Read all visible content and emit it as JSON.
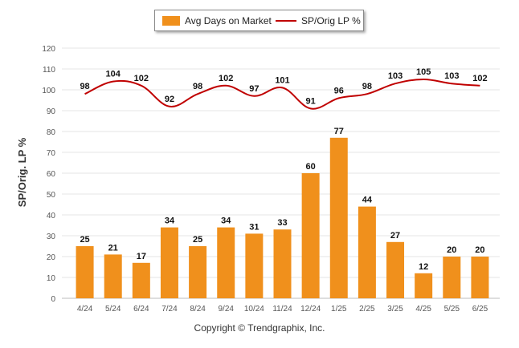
{
  "legend": {
    "bar_label": "Avg Days on Market",
    "line_label": "SP/Orig LP %"
  },
  "copyright": "Copyright © Trendgraphix, Inc.",
  "chart_data": {
    "type": "bar",
    "categories": [
      "4/24",
      "5/24",
      "6/24",
      "7/24",
      "8/24",
      "9/24",
      "10/24",
      "11/24",
      "12/24",
      "1/25",
      "2/25",
      "3/25",
      "4/25",
      "5/25",
      "6/25"
    ],
    "series": [
      {
        "name": "Avg Days on Market",
        "type": "bar",
        "color": "#f0901c",
        "values": [
          25,
          21,
          17,
          34,
          25,
          34,
          31,
          33,
          60,
          77,
          44,
          27,
          12,
          20,
          20
        ]
      },
      {
        "name": "SP/Orig LP %",
        "type": "line",
        "color": "#c00000",
        "values": [
          98,
          104,
          102,
          92,
          98,
          102,
          97,
          101,
          91,
          96,
          98,
          103,
          105,
          103,
          102
        ]
      }
    ],
    "ylabel": "SP/Orig. LP %",
    "ylim": [
      0,
      120
    ],
    "yticks": [
      0,
      10,
      20,
      30,
      40,
      50,
      60,
      70,
      80,
      90,
      100,
      110,
      120
    ],
    "grid": true,
    "legend_position": "top-center"
  }
}
